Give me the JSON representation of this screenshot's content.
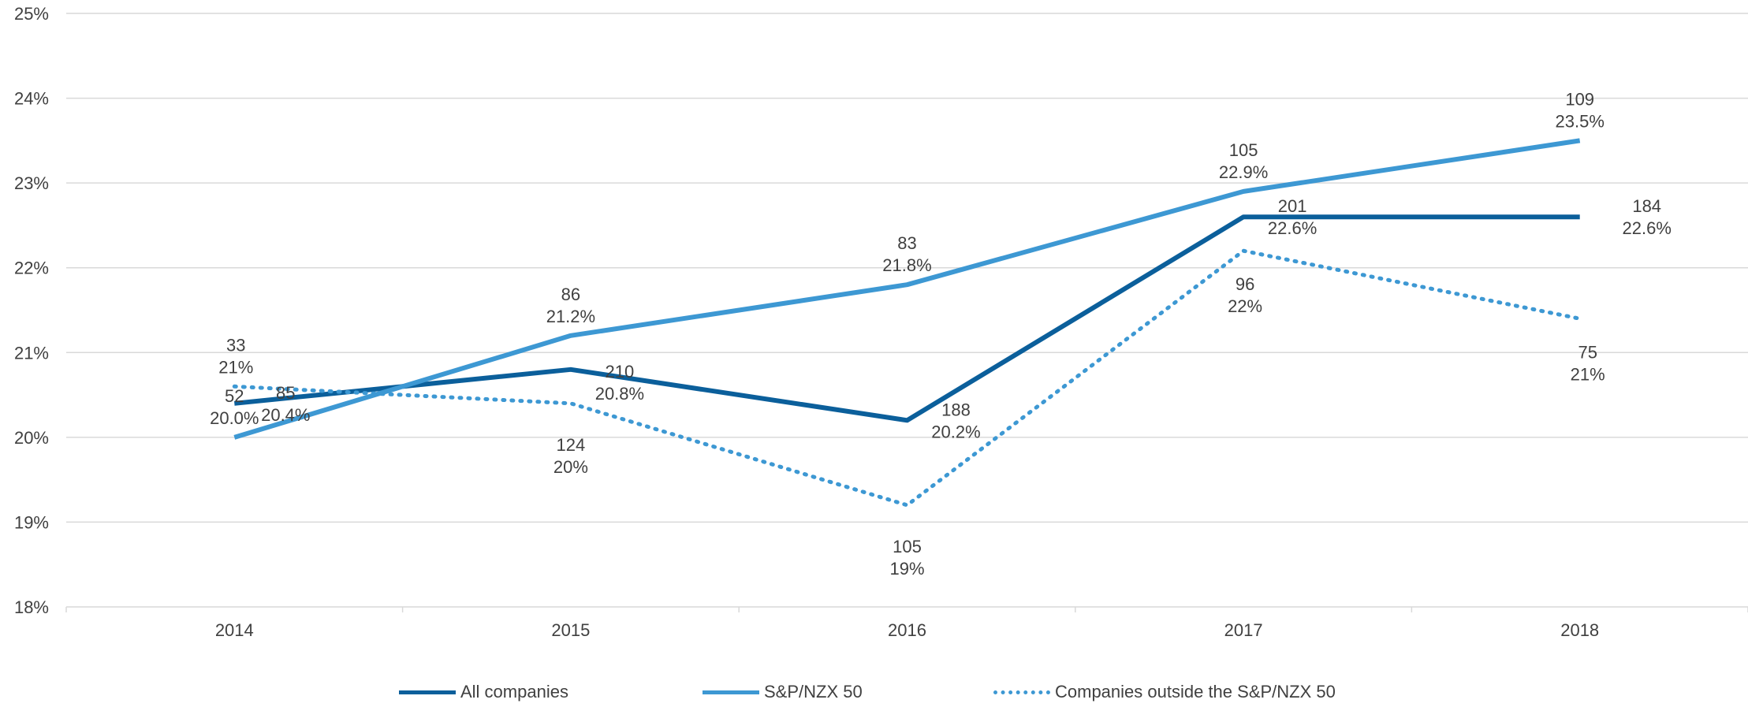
{
  "chart_data": {
    "type": "line",
    "categories": [
      "2014",
      "2015",
      "2016",
      "2017",
      "2018"
    ],
    "ylim": [
      18,
      25
    ],
    "yticks": [
      "18%",
      "19%",
      "20%",
      "21%",
      "22%",
      "23%",
      "24%",
      "25%"
    ],
    "grid": true,
    "legend_position": "bottom",
    "series": [
      {
        "name": "All companies",
        "color": "#0b5f9b",
        "dash": "solid",
        "values": [
          20.4,
          20.8,
          20.2,
          22.6,
          22.6
        ],
        "counts": [
          "85",
          "210",
          "188",
          "201",
          "184"
        ],
        "labels": [
          "20.4%",
          "20.8%",
          "20.2%",
          "22.6%",
          "22.6%"
        ]
      },
      {
        "name": "S&P/NZX 50",
        "color": "#3d98d3",
        "dash": "solid",
        "values": [
          20.0,
          21.2,
          21.8,
          22.9,
          23.5
        ],
        "counts": [
          "52",
          "86",
          "83",
          "105",
          "109"
        ],
        "labels": [
          "20.0%",
          "21.2%",
          "21.8%",
          "22.9%",
          "23.5%"
        ]
      },
      {
        "name": "Companies outside the S&P/NZX 50",
        "color": "#3d98d3",
        "dash": "dotted",
        "values": [
          20.6,
          20.4,
          19.2,
          22.2,
          21.4
        ],
        "counts": [
          "33",
          "124",
          "105",
          "96",
          "75"
        ],
        "labels": [
          "21%",
          "20%",
          "19%",
          "22%",
          "21%"
        ]
      }
    ]
  }
}
